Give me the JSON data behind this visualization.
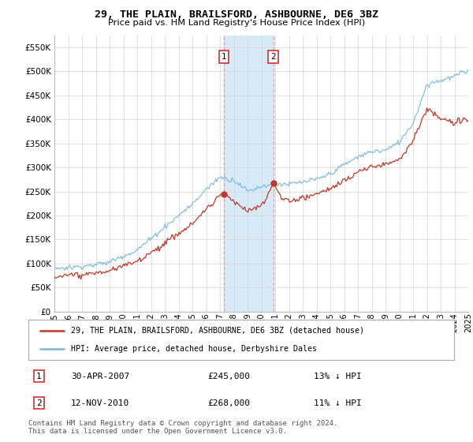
{
  "title": "29, THE PLAIN, BRAILSFORD, ASHBOURNE, DE6 3BZ",
  "subtitle": "Price paid vs. HM Land Registry's House Price Index (HPI)",
  "legend_line1": "29, THE PLAIN, BRAILSFORD, ASHBOURNE, DE6 3BZ (detached house)",
  "legend_line2": "HPI: Average price, detached house, Derbyshire Dales",
  "sale1_date": "30-APR-2007",
  "sale1_price_str": "£245,000",
  "sale1_price_val": 245000,
  "sale1_hpi": "13% ↓ HPI",
  "sale1_t": 2007.29,
  "sale2_date": "12-NOV-2010",
  "sale2_price_str": "£268,000",
  "sale2_price_val": 268000,
  "sale2_hpi": "11% ↓ HPI",
  "sale2_t": 2010.87,
  "footer": "Contains HM Land Registry data © Crown copyright and database right 2024.\nThis data is licensed under the Open Government Licence v3.0.",
  "hpi_color": "#7ab8d9",
  "price_color": "#c0392b",
  "highlight_color": "#d6eaf8",
  "vline_color": "#e8a0a0",
  "grid_color": "#d5d5d5",
  "background_color": "#ffffff",
  "ylim": [
    0,
    575000
  ],
  "yticks": [
    0,
    50000,
    100000,
    150000,
    200000,
    250000,
    300000,
    350000,
    400000,
    450000,
    500000,
    550000
  ],
  "start_year": 1995,
  "end_year": 2025
}
